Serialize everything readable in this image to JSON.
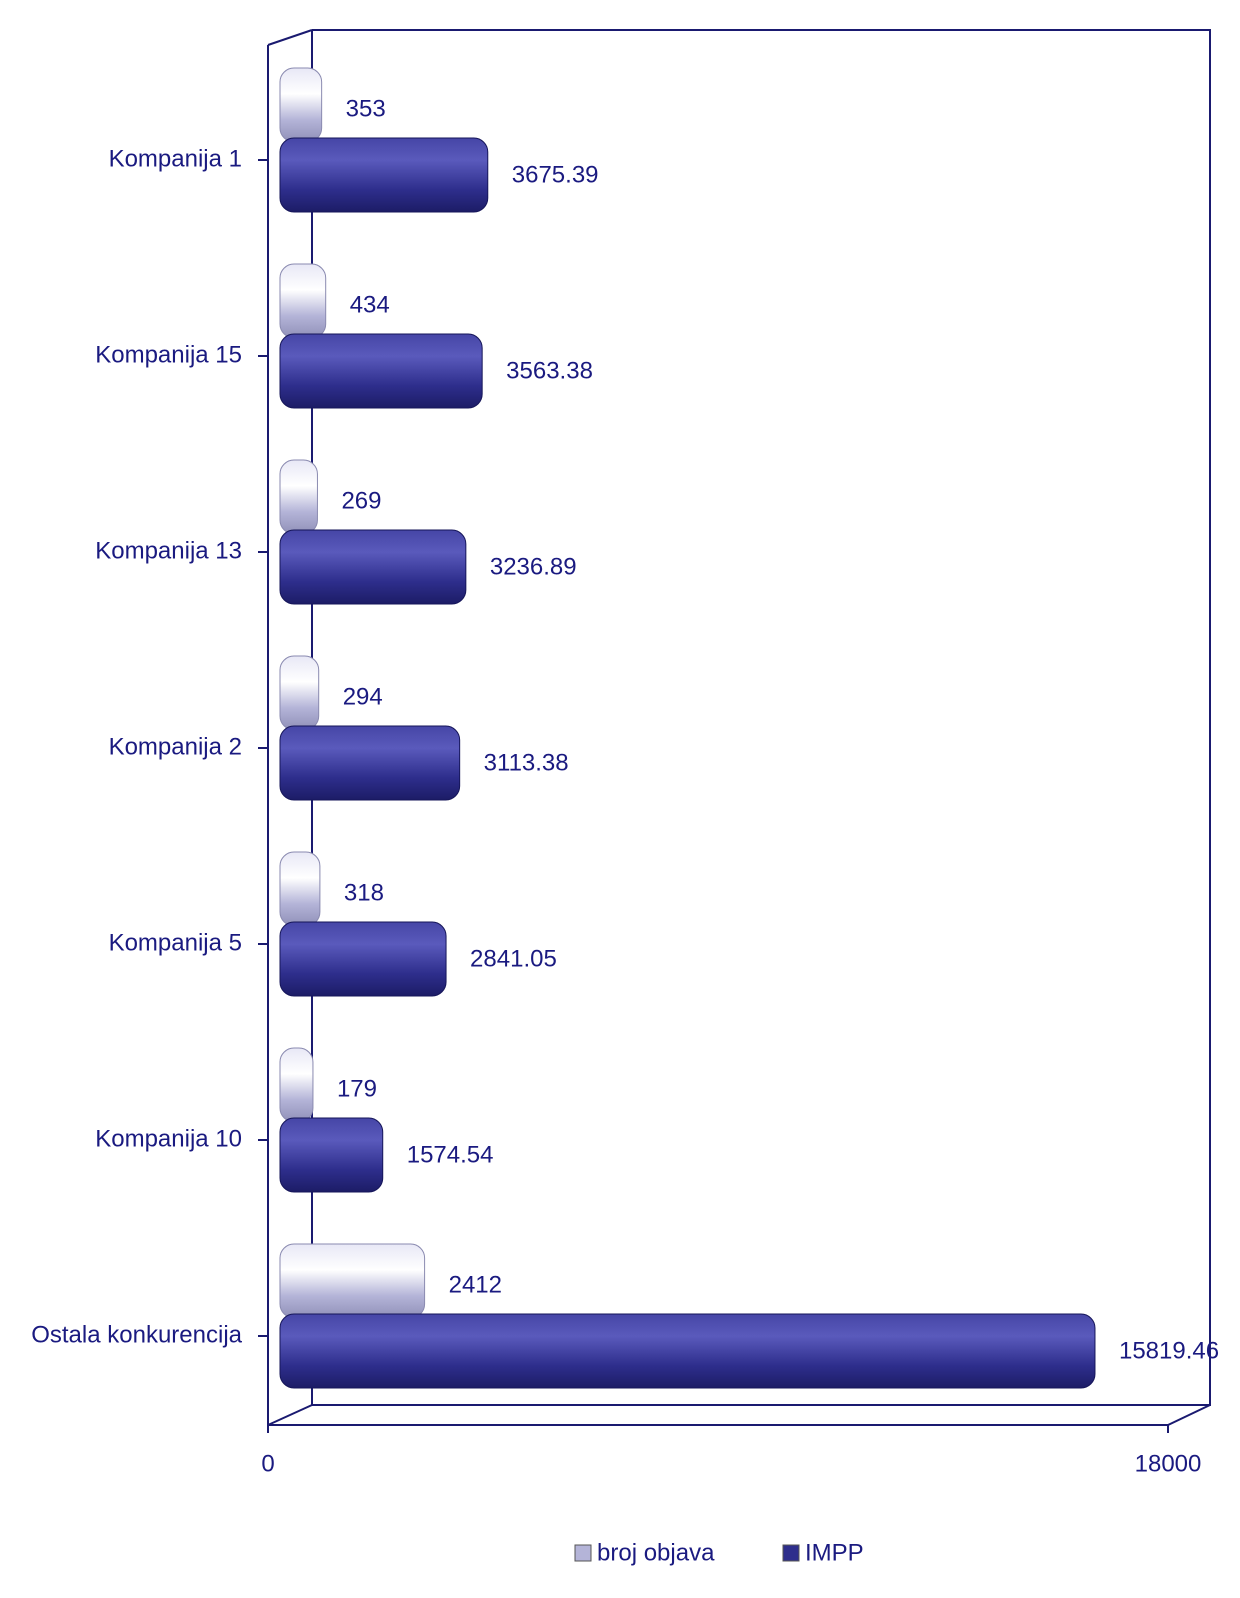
{
  "chart_data": {
    "type": "barh",
    "categories": [
      "Kompanija 1",
      "Kompanija 15",
      "Kompanija 13",
      "Kompanija 2",
      "Kompanija 5",
      "Kompanija 10",
      "Ostala konkurencija"
    ],
    "series": [
      {
        "name": "broj objava",
        "color": "#b4b4d8",
        "values": [
          353,
          434,
          269,
          294,
          318,
          179,
          2412
        ]
      },
      {
        "name": "IMPP",
        "color": "#2e2e8c",
        "values": [
          3675.39,
          3563.38,
          3236.89,
          3113.38,
          2841.05,
          1574.54,
          15819.46
        ]
      }
    ],
    "xlim": [
      0,
      18000
    ],
    "xticks": [
      0,
      18000
    ]
  }
}
